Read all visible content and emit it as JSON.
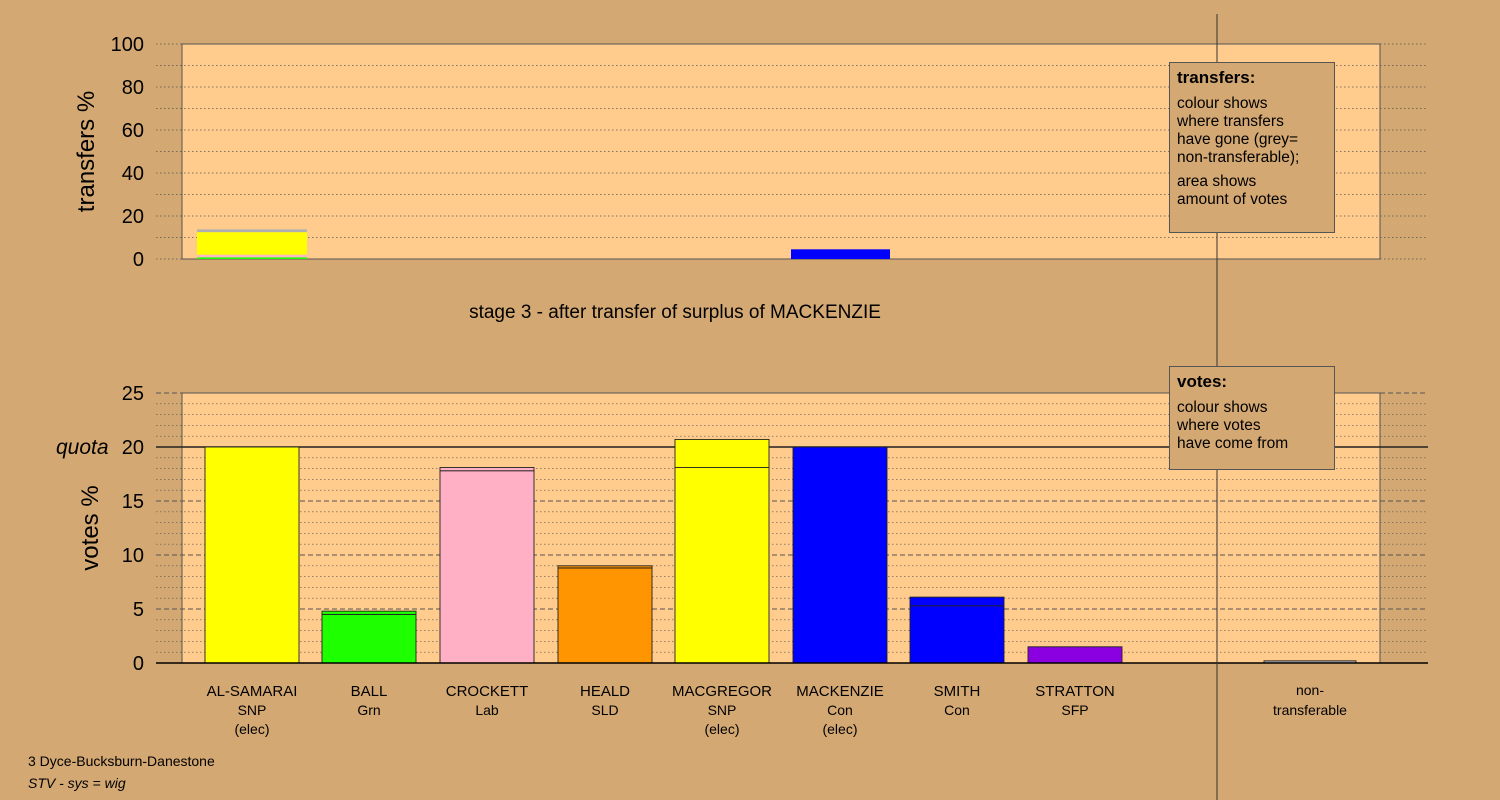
{
  "chart_data": [
    {
      "type": "bar",
      "stacked": true,
      "ylabel": "transfers %",
      "ylim": [
        0,
        100
      ],
      "yticks": [
        0,
        20,
        40,
        60,
        80,
        100
      ],
      "categories": [
        "AL-SAMARAI",
        "MACKENZIE"
      ],
      "bars": [
        {
          "candidate": "AL-SAMARAI",
          "segments": [
            {
              "value": 0.8,
              "color": "#1eff00"
            },
            {
              "value": 1.2,
              "color": "#ffb6c8"
            },
            {
              "value": 10.5,
              "color": "#ffff00"
            },
            {
              "value": 1.3,
              "color": "#b0b0b0"
            }
          ]
        },
        {
          "candidate": "MACKENZIE",
          "segments": [
            {
              "value": 4.5,
              "color": "#0000ff"
            }
          ]
        }
      ]
    },
    {
      "type": "bar",
      "stacked": true,
      "ylabel": "votes %",
      "ylim": [
        0,
        25
      ],
      "yticks": [
        0,
        5,
        10,
        15,
        20,
        25
      ],
      "quota": 20,
      "quota_label": "quota",
      "categories": [
        {
          "name": "AL-SAMARAI",
          "party": "SNP",
          "status": "(elec)"
        },
        {
          "name": "BALL",
          "party": "Grn",
          "status": ""
        },
        {
          "name": "CROCKETT",
          "party": "Lab",
          "status": ""
        },
        {
          "name": "HEALD",
          "party": "SLD",
          "status": ""
        },
        {
          "name": "MACGREGOR",
          "party": "SNP",
          "status": "(elec)"
        },
        {
          "name": "MACKENZIE",
          "party": "Con",
          "status": "(elec)"
        },
        {
          "name": "SMITH",
          "party": "Con",
          "status": ""
        },
        {
          "name": "STRATTON",
          "party": "SFP",
          "status": ""
        },
        {
          "name": "non-transferable",
          "party": "",
          "status": ""
        }
      ],
      "bars": [
        {
          "candidate": "AL-SAMARAI",
          "segments": [
            {
              "value": 20.0,
              "color": "#ffff00"
            }
          ]
        },
        {
          "candidate": "BALL",
          "segments": [
            {
              "value": 4.5,
              "color": "#1eff00"
            },
            {
              "value": 0.3,
              "color": "#1eff00"
            }
          ]
        },
        {
          "candidate": "CROCKETT",
          "segments": [
            {
              "value": 17.8,
              "color": "#ffb0c5"
            },
            {
              "value": 0.3,
              "color": "#ffb0c5"
            }
          ]
        },
        {
          "candidate": "HEALD",
          "segments": [
            {
              "value": 8.8,
              "color": "#ff9500"
            },
            {
              "value": 0.2,
              "color": "#ff9500"
            }
          ]
        },
        {
          "candidate": "MACGREGOR",
          "segments": [
            {
              "value": 18.1,
              "color": "#ffff00"
            },
            {
              "value": 2.6,
              "color": "#ffff00"
            }
          ]
        },
        {
          "candidate": "MACKENZIE",
          "segments": [
            {
              "value": 20.0,
              "color": "#0000ff"
            }
          ]
        },
        {
          "candidate": "SMITH",
          "segments": [
            {
              "value": 5.3,
              "color": "#0000ff"
            },
            {
              "value": 0.8,
              "color": "#0000ff"
            }
          ]
        },
        {
          "candidate": "STRATTON",
          "segments": [
            {
              "value": 1.5,
              "color": "#8a00e0"
            }
          ]
        },
        {
          "candidate": "non-transferable",
          "segments": [
            {
              "value": 0.2,
              "color": "#b0b0b0"
            }
          ]
        }
      ]
    }
  ],
  "stage_title": "stage 3 - after transfer of surplus of MACKENZIE",
  "legend_transfers": {
    "title": "transfers:",
    "line1": "colour shows",
    "line2": "where transfers",
    "line3": "have gone (grey=",
    "line4": "non-transferable);",
    "line5": "area shows",
    "line6": "amount of votes"
  },
  "legend_votes": {
    "title": "votes:",
    "line1": "colour shows",
    "line2": "where votes",
    "line3": "have come from"
  },
  "footer": {
    "ward": "3 Dyce-Bucksburn-Danestone",
    "system": "STV - sys = wig"
  },
  "colors": {
    "background": "#d4a873",
    "plot_area": "#ffcc8d"
  }
}
